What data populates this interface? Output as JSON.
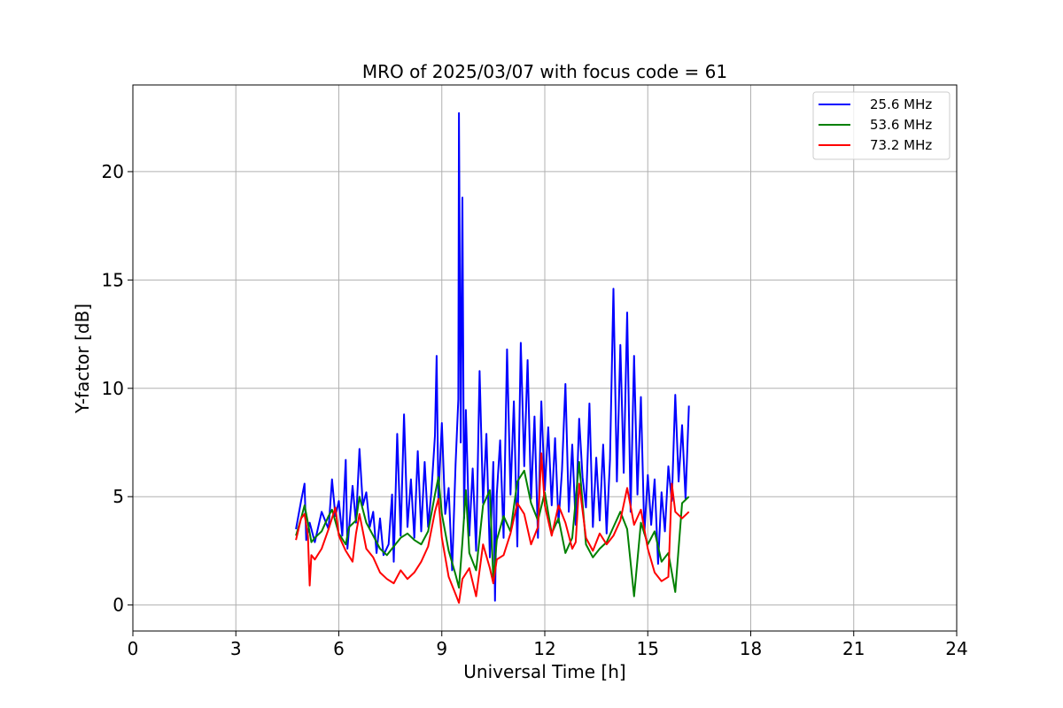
{
  "chart_data": {
    "type": "line",
    "title": "MRO of 2025/03/07 with focus code = 61",
    "xlabel": "Universal Time [h]",
    "ylabel": "Y-factor [dB]",
    "xlim": [
      0,
      24
    ],
    "ylim": [
      -1.2,
      24
    ],
    "xticks": [
      0,
      3,
      6,
      9,
      12,
      15,
      18,
      21,
      24
    ],
    "yticks": [
      0,
      5,
      10,
      15,
      20
    ],
    "grid": true,
    "legend_position": "top-right",
    "series": [
      {
        "name": "25.6 MHz",
        "color": "#0000ff",
        "x": [
          4.75,
          4.9,
          5.0,
          5.05,
          5.15,
          5.3,
          5.5,
          5.7,
          5.8,
          5.9,
          6.0,
          6.1,
          6.2,
          6.25,
          6.4,
          6.5,
          6.6,
          6.7,
          6.8,
          6.9,
          7.0,
          7.1,
          7.2,
          7.3,
          7.45,
          7.55,
          7.6,
          7.7,
          7.8,
          7.9,
          8.0,
          8.1,
          8.2,
          8.3,
          8.4,
          8.5,
          8.6,
          8.7,
          8.8,
          8.85,
          8.9,
          9.0,
          9.1,
          9.2,
          9.3,
          9.4,
          9.48,
          9.5,
          9.55,
          9.6,
          9.65,
          9.7,
          9.8,
          9.9,
          10.0,
          10.1,
          10.2,
          10.3,
          10.4,
          10.5,
          10.55,
          10.6,
          10.7,
          10.8,
          10.9,
          11.0,
          11.1,
          11.2,
          11.3,
          11.4,
          11.5,
          11.6,
          11.7,
          11.8,
          11.9,
          12.0,
          12.1,
          12.2,
          12.3,
          12.4,
          12.5,
          12.6,
          12.7,
          12.8,
          12.9,
          13.0,
          13.1,
          13.2,
          13.3,
          13.4,
          13.5,
          13.6,
          13.7,
          13.8,
          13.9,
          14.0,
          14.1,
          14.2,
          14.3,
          14.4,
          14.5,
          14.6,
          14.7,
          14.8,
          14.9,
          15.0,
          15.1,
          15.2,
          15.3,
          15.4,
          15.5,
          15.6,
          15.7,
          15.8,
          15.9,
          16.0,
          16.1,
          16.2
        ],
        "y": [
          3.5,
          4.8,
          5.6,
          3.0,
          3.8,
          2.9,
          4.3,
          3.5,
          5.8,
          4.1,
          4.8,
          3.2,
          6.7,
          2.6,
          5.5,
          3.8,
          7.2,
          4.6,
          5.2,
          3.6,
          4.3,
          2.4,
          4.0,
          2.3,
          2.8,
          5.1,
          2.0,
          7.9,
          3.2,
          8.8,
          3.6,
          5.8,
          3.1,
          7.1,
          3.4,
          6.6,
          3.6,
          5.3,
          7.8,
          11.5,
          4.9,
          8.4,
          4.2,
          5.4,
          1.6,
          6.5,
          9.5,
          22.7,
          7.5,
          18.8,
          4.0,
          9.0,
          3.2,
          6.3,
          2.5,
          10.8,
          4.7,
          7.9,
          2.2,
          6.6,
          0.2,
          5.1,
          7.6,
          3.1,
          11.8,
          5.1,
          9.4,
          2.7,
          12.1,
          6.4,
          11.3,
          4.9,
          8.7,
          3.1,
          9.4,
          5.3,
          8.2,
          4.6,
          7.7,
          3.8,
          6.2,
          10.2,
          4.3,
          7.4,
          3.7,
          8.6,
          5.9,
          4.5,
          9.3,
          3.6,
          6.8,
          3.9,
          7.4,
          3.3,
          6.7,
          14.6,
          5.7,
          12.0,
          6.1,
          13.5,
          4.3,
          11.5,
          5.1,
          9.6,
          3.3,
          6.0,
          3.7,
          5.8,
          1.9,
          5.2,
          3.4,
          6.4,
          4.8,
          9.7,
          5.7,
          8.3,
          4.9,
          9.2
        ]
      },
      {
        "name": "53.6 MHz",
        "color": "#008000",
        "x": [
          4.75,
          4.9,
          5.0,
          5.1,
          5.2,
          5.3,
          5.5,
          5.7,
          5.8,
          6.0,
          6.2,
          6.3,
          6.5,
          6.6,
          6.8,
          7.0,
          7.2,
          7.4,
          7.6,
          7.8,
          8.0,
          8.2,
          8.4,
          8.6,
          8.8,
          8.9,
          9.0,
          9.2,
          9.4,
          9.5,
          9.6,
          9.7,
          9.8,
          10.0,
          10.2,
          10.4,
          10.5,
          10.6,
          10.8,
          11.0,
          11.2,
          11.4,
          11.6,
          11.8,
          12.0,
          12.2,
          12.4,
          12.6,
          12.8,
          13.0,
          13.2,
          13.4,
          13.6,
          13.8,
          14.0,
          14.2,
          14.4,
          14.6,
          14.8,
          15.0,
          15.2,
          15.4,
          15.6,
          15.8,
          16.0,
          16.2
        ],
        "y": [
          3.2,
          4.0,
          4.6,
          3.8,
          2.9,
          3.1,
          3.4,
          4.1,
          4.4,
          3.3,
          2.8,
          3.6,
          3.9,
          5.0,
          3.8,
          3.2,
          2.6,
          2.3,
          2.7,
          3.1,
          3.3,
          3.0,
          2.8,
          3.4,
          5.1,
          5.9,
          4.2,
          2.5,
          1.4,
          0.8,
          2.9,
          5.3,
          2.4,
          1.6,
          4.6,
          5.3,
          1.1,
          3.0,
          4.1,
          3.4,
          5.7,
          6.2,
          4.7,
          3.9,
          5.2,
          3.3,
          4.0,
          2.4,
          3.1,
          6.6,
          2.8,
          2.2,
          2.6,
          2.9,
          3.6,
          4.3,
          3.5,
          0.4,
          3.8,
          2.8,
          3.4,
          2.0,
          2.4,
          0.6,
          4.7,
          5.0
        ]
      },
      {
        "name": "73.2 MHz",
        "color": "#ff0000",
        "x": [
          4.75,
          4.9,
          5.0,
          5.1,
          5.15,
          5.2,
          5.3,
          5.5,
          5.7,
          5.9,
          6.0,
          6.2,
          6.4,
          6.5,
          6.6,
          6.8,
          7.0,
          7.2,
          7.4,
          7.6,
          7.8,
          8.0,
          8.2,
          8.4,
          8.6,
          8.8,
          8.9,
          9.0,
          9.2,
          9.4,
          9.5,
          9.6,
          9.8,
          10.0,
          10.2,
          10.4,
          10.5,
          10.6,
          10.8,
          11.0,
          11.2,
          11.4,
          11.6,
          11.8,
          11.9,
          12.0,
          12.2,
          12.4,
          12.6,
          12.8,
          12.9,
          13.0,
          13.2,
          13.4,
          13.6,
          13.8,
          14.0,
          14.2,
          14.4,
          14.6,
          14.8,
          15.0,
          15.2,
          15.4,
          15.6,
          15.7,
          15.8,
          16.0,
          16.2
        ],
        "y": [
          3.0,
          4.0,
          4.2,
          3.2,
          0.9,
          2.3,
          2.1,
          2.6,
          3.5,
          4.5,
          3.2,
          2.5,
          2.0,
          3.3,
          4.2,
          2.6,
          2.2,
          1.5,
          1.2,
          1.0,
          1.6,
          1.2,
          1.5,
          2.0,
          2.7,
          4.3,
          4.9,
          3.1,
          1.3,
          0.5,
          0.1,
          1.2,
          1.7,
          0.4,
          2.8,
          1.7,
          1.0,
          2.1,
          2.3,
          3.3,
          4.7,
          4.2,
          2.8,
          3.6,
          7.0,
          4.6,
          3.2,
          4.6,
          3.8,
          2.6,
          2.9,
          5.6,
          3.1,
          2.5,
          3.3,
          2.8,
          3.2,
          3.9,
          5.4,
          3.7,
          4.4,
          2.6,
          1.5,
          1.1,
          1.3,
          5.6,
          4.3,
          4.0,
          4.3
        ]
      }
    ]
  }
}
